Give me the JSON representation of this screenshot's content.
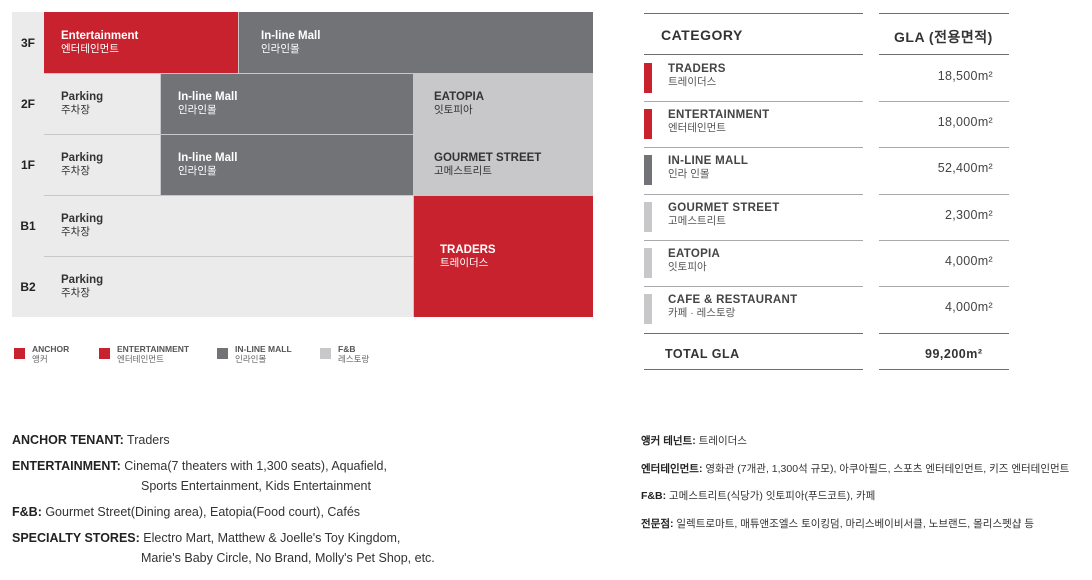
{
  "floors": {
    "3F": "3F",
    "2F": "2F",
    "1F": "1F",
    "B1": "B1",
    "B2": "B2"
  },
  "cells": {
    "f3_ent": {
      "en": "Entertainment",
      "ko": "엔터테인먼트"
    },
    "f3_mall": {
      "en": "In-line Mall",
      "ko": "인라인몰"
    },
    "f2_parking": {
      "en": "Parking",
      "ko": "주차장"
    },
    "f2_mall": {
      "en": "In-line Mall",
      "ko": "인라인몰"
    },
    "f2_eatopia": {
      "en": "EATOPIA",
      "ko": "잇토피아"
    },
    "f1_parking": {
      "en": "Parking",
      "ko": "주차장"
    },
    "f1_mall": {
      "en": "In-line Mall",
      "ko": "인라인몰"
    },
    "f1_gourmet": {
      "en": "GOURMET STREET",
      "ko": "고메스트리트"
    },
    "b1_parking": {
      "en": "Parking",
      "ko": "주차장"
    },
    "b2_parking": {
      "en": "Parking",
      "ko": "주차장"
    },
    "traders": {
      "en": "TRADERS",
      "ko": "트레이더스"
    }
  },
  "legend": [
    {
      "en": "ANCHOR",
      "ko": "앵커",
      "color": "#c8222e"
    },
    {
      "en": "ENTERTAINMENT",
      "ko": "엔터테인먼트",
      "color": "#c8222e"
    },
    {
      "en": "IN-LINE MALL",
      "ko": "인라인몰",
      "color": "#727376"
    },
    {
      "en": "F&B",
      "ko": "레스토랑",
      "color": "#c8c8ca"
    }
  ],
  "gla_table": {
    "header_category": "CATEGORY",
    "header_gla": "GLA (전용면적)",
    "rows": [
      {
        "en": "TRADERS",
        "ko": "트레이더스",
        "value": "18,500m²",
        "color": "#c8222e"
      },
      {
        "en": "ENTERTAINMENT",
        "ko": "엔터테인먼트",
        "value": "18,000m²",
        "color": "#c8222e"
      },
      {
        "en": "IN-LINE MALL",
        "ko": "인라 인몰",
        "value": "52,400m²",
        "color": "#727376"
      },
      {
        "en": "GOURMET STREET",
        "ko": "고메스트리트",
        "value": "2,300m²",
        "color": "#c8c8ca"
      },
      {
        "en": "EATOPIA",
        "ko": "잇토피아",
        "value": "4,000m²",
        "color": "#c8c8ca"
      },
      {
        "en": "CAFE & RESTAURANT",
        "ko": "카페 · 레스토랑",
        "value": "4,000m²",
        "color": "#c8c8ca"
      }
    ],
    "total_label": "TOTAL GLA",
    "total_value": "99,200m²"
  },
  "info_en": {
    "anchor_label": "ANCHOR TENANT:",
    "anchor_value": " Traders",
    "ent_label": "ENTERTAINMENT:",
    "ent_value1": " Cinema(7 theaters with 1,300 seats), Aquafield,",
    "ent_value2": "Sports Entertainment, Kids Entertainment",
    "fb_label": "F&B:",
    "fb_value": " Gourmet Street(Dining area), Eatopia(Food court), Cafés",
    "spec_label": "SPECIALTY STORES:",
    "spec_value1": " Electro Mart, Matthew & Joelle's Toy Kingdom,",
    "spec_value2": "Marie's Baby Circle, No Brand, Molly's Pet Shop, etc."
  },
  "info_ko": {
    "anchor_label": "앵커 테넌트:",
    "anchor_value": " 트레이더스",
    "ent_label": "엔터테인먼트:",
    "ent_value": " 영화관 (7개관, 1,300석 규모), 아쿠아필드, 스포츠 엔터테인먼트, 키즈 엔터테인먼트",
    "fb_label": "F&B:",
    "fb_value": " 고메스트리트(식당가) 잇토피아(푸드코트), 카페",
    "spec_label": "전문점:",
    "spec_value": " 일렉트로마트, 매튜앤조엘스 토이킹덤, 마리스베이비서클, 노브랜드, 몰리스펫샵 등"
  }
}
